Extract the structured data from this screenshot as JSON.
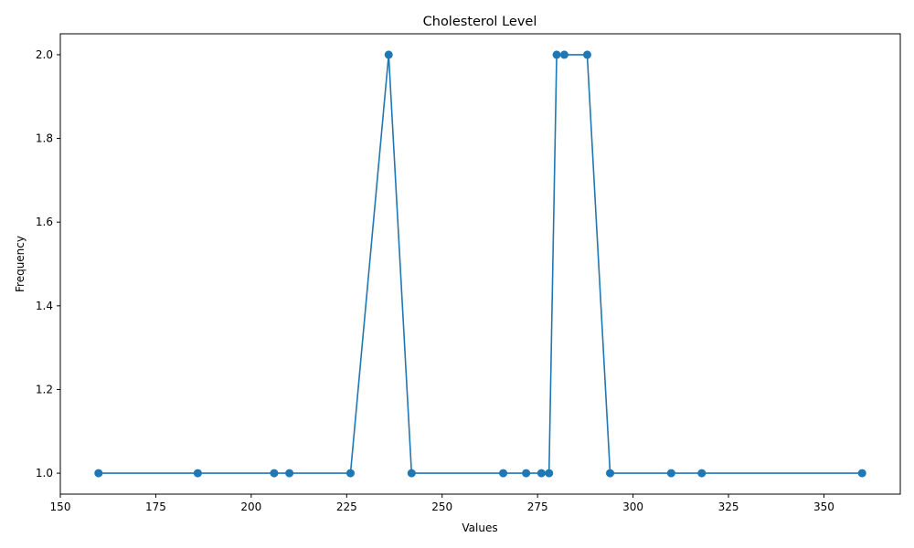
{
  "chart_data": {
    "type": "line",
    "title": "Cholesterol Level",
    "xlabel": "Values",
    "ylabel": "Frequency",
    "xlim": [
      150,
      370
    ],
    "ylim": [
      0.95,
      2.05
    ],
    "xticks": [
      150,
      175,
      200,
      225,
      250,
      275,
      300,
      325,
      350
    ],
    "yticks": [
      1.0,
      1.2,
      1.4,
      1.6,
      1.8,
      2.0
    ],
    "grid": false,
    "line_color": "#1f77b4",
    "marker": "circle",
    "series": [
      {
        "x": [
          160,
          186,
          206,
          210,
          226,
          236,
          242,
          266,
          272,
          276,
          278,
          280,
          282,
          288,
          294,
          310,
          318,
          360
        ],
        "y": [
          1,
          1,
          1,
          1,
          1,
          2,
          1,
          1,
          1,
          1,
          1,
          2,
          2,
          2,
          1,
          1,
          1,
          1
        ]
      }
    ]
  }
}
